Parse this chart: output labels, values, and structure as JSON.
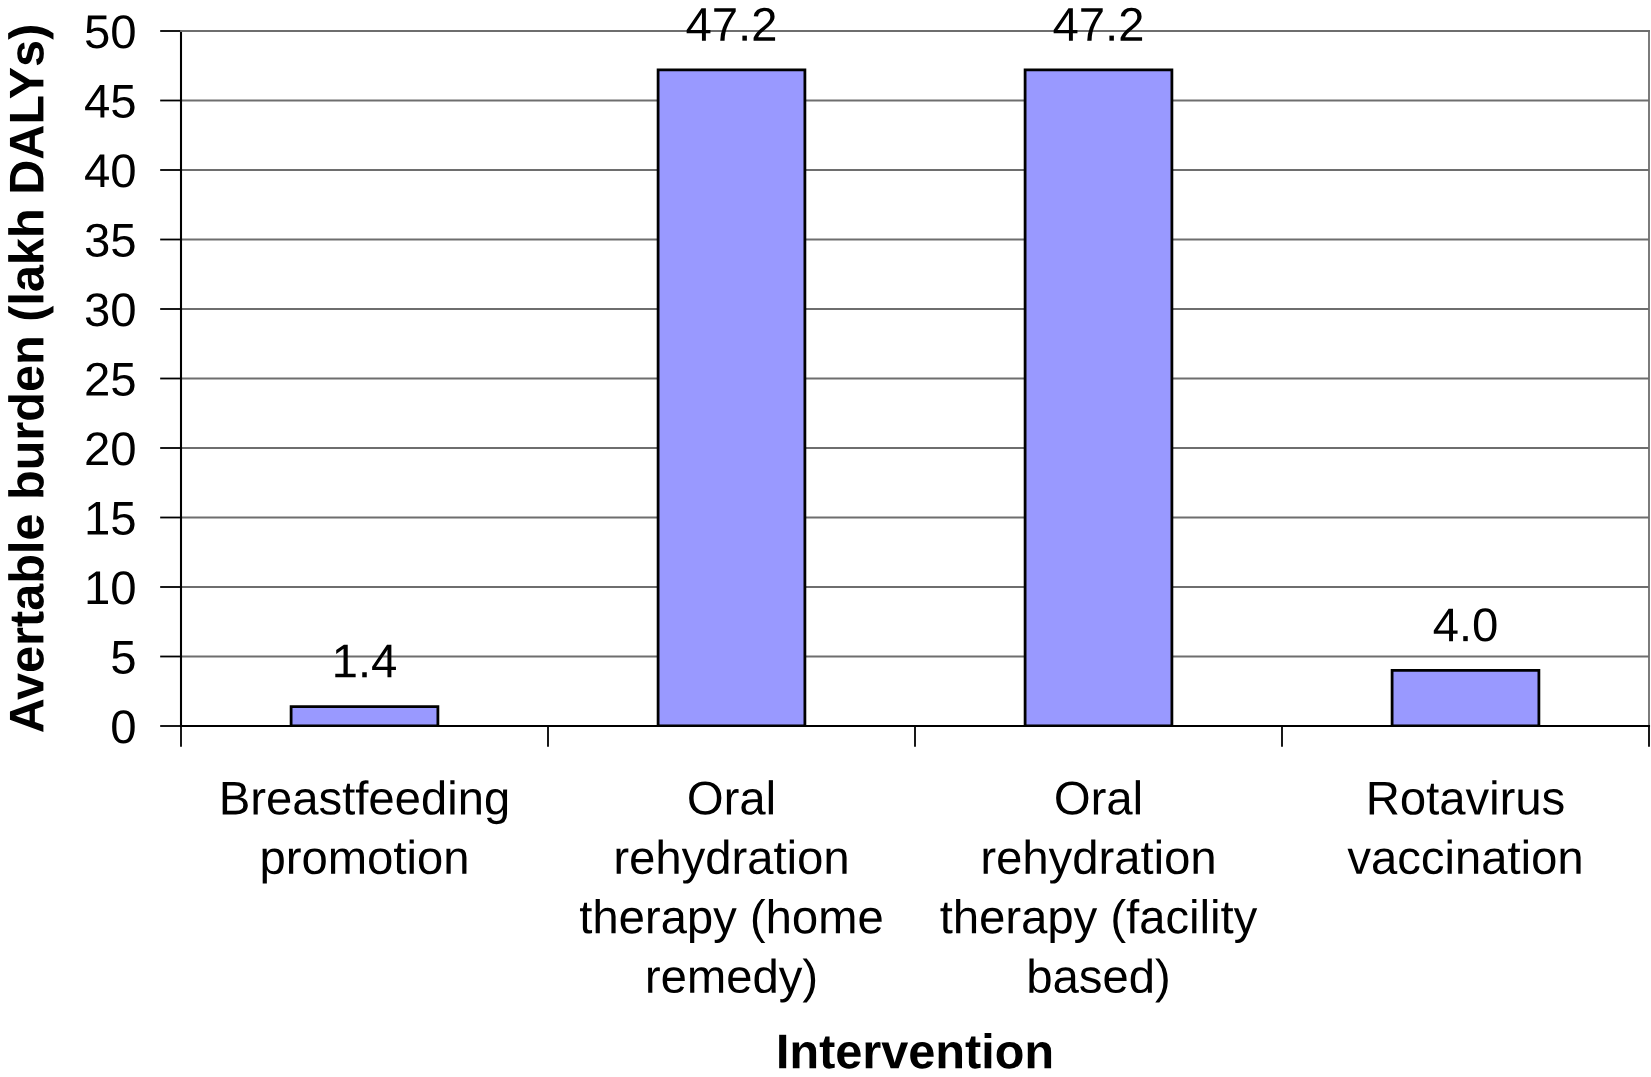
{
  "chart_data": {
    "type": "bar",
    "xlabel": "Intervention",
    "ylabel": "Avertable burden (lakh DALYs)",
    "categories": [
      "Breastfeeding\npromotion",
      "Oral\nrehydration\ntherapy (home\nremedy)",
      "Oral\nrehydration\ntherapy (facility\nbased)",
      "Rotavirus\nvaccination"
    ],
    "values": [
      1.4,
      47.2,
      47.2,
      4.0
    ],
    "color": "#9999ff",
    "value_labels": [
      "1.4",
      "47.2",
      "47.2",
      "4.0"
    ],
    "ylim": [
      0,
      50
    ],
    "yticks": [
      0,
      5,
      10,
      15,
      20,
      25,
      30,
      35,
      40,
      45,
      50
    ],
    "grid": "y"
  }
}
